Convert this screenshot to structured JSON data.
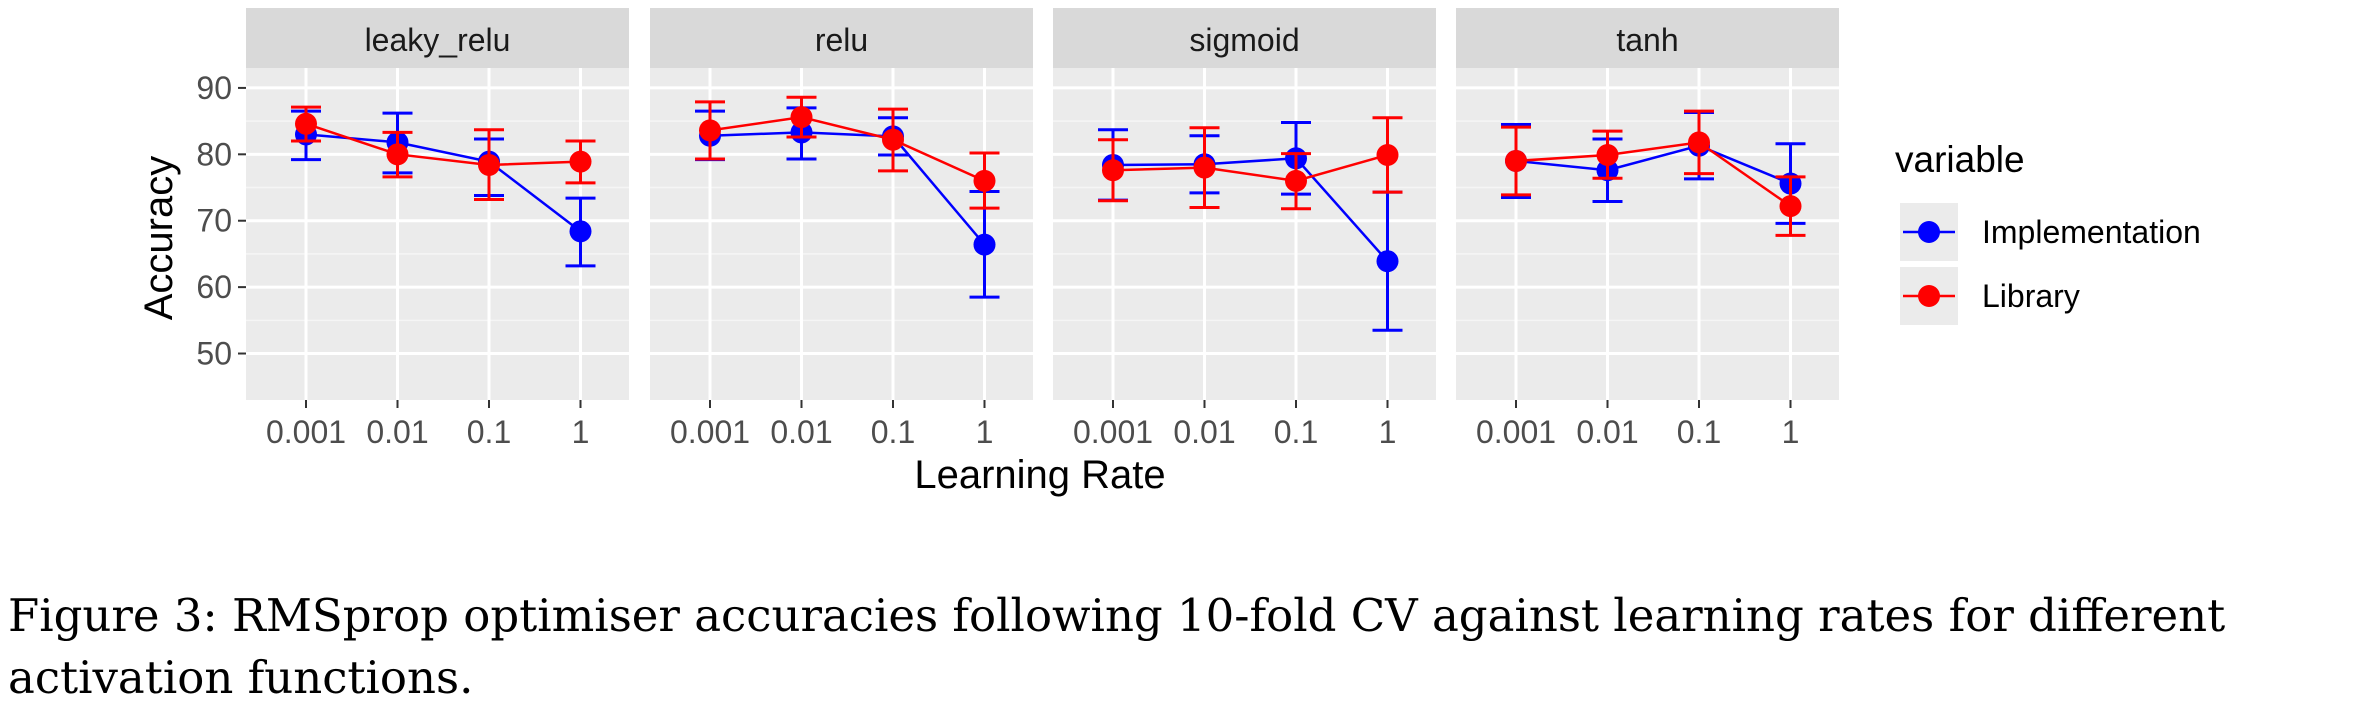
{
  "chart_data": {
    "type": "line",
    "facet_by": "activation function",
    "panels": [
      "leaky_relu",
      "relu",
      "sigmoid",
      "tanh"
    ],
    "categories": [
      "0.001",
      "0.01",
      "0.1",
      "1"
    ],
    "xlabel": "Learning Rate",
    "ylabel": "Accuracy",
    "ylim": [
      43,
      93
    ],
    "yticks": [
      50,
      60,
      70,
      80,
      90
    ],
    "grid": true,
    "legend": {
      "title": "variable",
      "position": "right"
    },
    "error_bars": true,
    "series": [
      {
        "name": "Implementation",
        "color": "#0000ff",
        "panels": {
          "leaky_relu": [
            {
              "x": "0.001",
              "y": 83.0,
              "lo": 79.2,
              "hi": 86.5
            },
            {
              "x": "0.01",
              "y": 81.8,
              "lo": 77.2,
              "hi": 86.2
            },
            {
              "x": "0.1",
              "y": 78.9,
              "lo": 73.8,
              "hi": 82.3
            },
            {
              "x": "1",
              "y": 68.4,
              "lo": 63.2,
              "hi": 73.4
            }
          ],
          "relu": [
            {
              "x": "0.001",
              "y": 82.8,
              "lo": 79.2,
              "hi": 86.5
            },
            {
              "x": "0.01",
              "y": 83.3,
              "lo": 79.3,
              "hi": 87.0
            },
            {
              "x": "0.1",
              "y": 82.7,
              "lo": 79.9,
              "hi": 85.5
            },
            {
              "x": "1",
              "y": 66.4,
              "lo": 58.5,
              "hi": 74.4
            }
          ],
          "sigmoid": [
            {
              "x": "0.001",
              "y": 78.4,
              "lo": 73.1,
              "hi": 83.7
            },
            {
              "x": "0.01",
              "y": 78.5,
              "lo": 74.2,
              "hi": 82.8
            },
            {
              "x": "0.1",
              "y": 79.4,
              "lo": 74.0,
              "hi": 84.8
            },
            {
              "x": "1",
              "y": 63.9,
              "lo": 53.5,
              "hi": 74.3
            }
          ],
          "tanh": [
            {
              "x": "0.001",
              "y": 79.0,
              "lo": 73.5,
              "hi": 84.5
            },
            {
              "x": "0.01",
              "y": 77.6,
              "lo": 72.9,
              "hi": 82.3
            },
            {
              "x": "0.1",
              "y": 81.3,
              "lo": 76.3,
              "hi": 86.3
            },
            {
              "x": "1",
              "y": 75.6,
              "lo": 69.6,
              "hi": 81.6
            }
          ]
        }
      },
      {
        "name": "Library",
        "color": "#ff0000",
        "panels": {
          "leaky_relu": [
            {
              "x": "0.001",
              "y": 84.6,
              "lo": 82.0,
              "hi": 87.1
            },
            {
              "x": "0.01",
              "y": 80.0,
              "lo": 76.6,
              "hi": 83.3
            },
            {
              "x": "0.1",
              "y": 78.4,
              "lo": 73.2,
              "hi": 83.7
            },
            {
              "x": "1",
              "y": 78.9,
              "lo": 75.7,
              "hi": 82.0
            }
          ],
          "relu": [
            {
              "x": "0.001",
              "y": 83.6,
              "lo": 79.3,
              "hi": 87.9
            },
            {
              "x": "0.01",
              "y": 85.6,
              "lo": 82.6,
              "hi": 88.6
            },
            {
              "x": "0.1",
              "y": 82.2,
              "lo": 77.5,
              "hi": 86.8
            },
            {
              "x": "1",
              "y": 76.0,
              "lo": 71.9,
              "hi": 80.2
            }
          ],
          "sigmoid": [
            {
              "x": "0.001",
              "y": 77.6,
              "lo": 73.0,
              "hi": 82.2
            },
            {
              "x": "0.01",
              "y": 78.0,
              "lo": 72.0,
              "hi": 84.0
            },
            {
              "x": "0.1",
              "y": 76.0,
              "lo": 71.8,
              "hi": 80.1
            },
            {
              "x": "1",
              "y": 79.9,
              "lo": 74.3,
              "hi": 85.5
            }
          ],
          "tanh": [
            {
              "x": "0.001",
              "y": 79.0,
              "lo": 73.9,
              "hi": 84.1
            },
            {
              "x": "0.01",
              "y": 79.9,
              "lo": 76.4,
              "hi": 83.5
            },
            {
              "x": "0.1",
              "y": 81.8,
              "lo": 77.1,
              "hi": 86.5
            },
            {
              "x": "1",
              "y": 72.2,
              "lo": 67.8,
              "hi": 76.6
            }
          ]
        }
      }
    ]
  },
  "caption": "Figure 3: RMSprop optimiser accuracies following 10-fold CV against learning rates for different activation functions."
}
